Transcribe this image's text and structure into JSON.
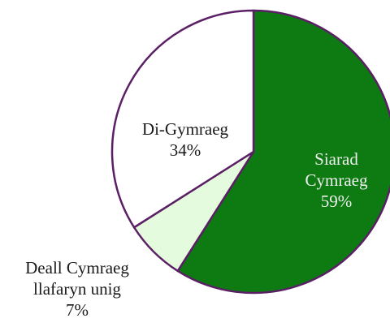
{
  "chart_data": {
    "type": "pie",
    "categories": [
      "Siarad Cymraeg",
      "Deall Cymraeg llafaryn unig",
      "Di-Gymraeg"
    ],
    "values": [
      59,
      7,
      34
    ],
    "value_labels": [
      "59%",
      "7%",
      "34%"
    ],
    "colors": [
      "#0d7a12",
      "#e4fbdd",
      "#ffffff"
    ]
  }
}
